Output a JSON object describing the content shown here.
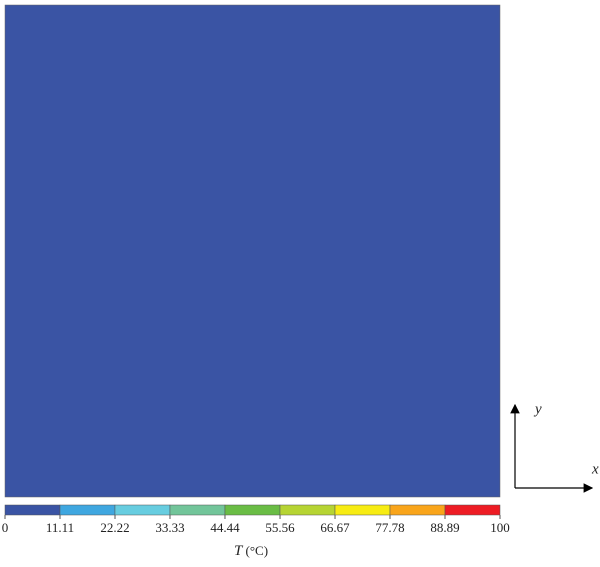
{
  "chart_data": {
    "type": "contour",
    "levels": [
      0,
      11.11,
      22.22,
      33.33,
      44.44,
      55.56,
      66.67,
      77.78,
      88.89,
      100
    ],
    "colors": [
      "#3a54a4",
      "#3fa7e0",
      "#67cde0",
      "#72c59a",
      "#6abd45",
      "#b6d433",
      "#f7ec13",
      "#f9a51b",
      "#ed1c24"
    ],
    "colorbar_label": {
      "symbol": "T",
      "unit": "(°C)"
    },
    "x_label": "x",
    "y_label": "y"
  }
}
